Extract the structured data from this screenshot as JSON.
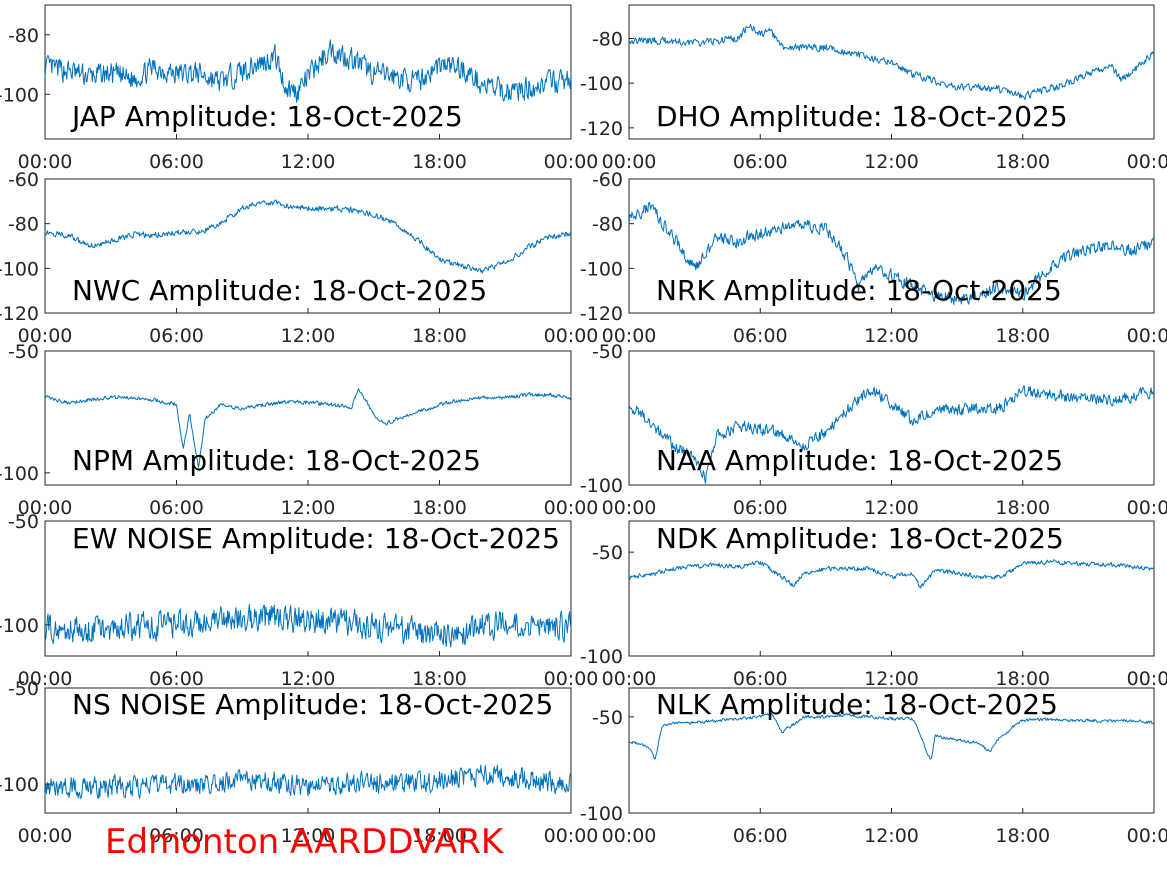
{
  "footer": "Edmonton AARDDVARK",
  "line_color": "#0072BD",
  "chart_data": [
    {
      "type": "line",
      "title": "JAP Amplitude: 18-Oct-2025",
      "xticks": [
        "00:00",
        "06:00",
        "12:00",
        "18:00",
        "00:00"
      ],
      "yticks": [
        "-80",
        "-100"
      ],
      "ylim": [
        -115,
        -70
      ],
      "series": [
        {
          "x": [
            0,
            1,
            2,
            3,
            4,
            5,
            6,
            7,
            8,
            9,
            10,
            10.5,
            11,
            11.5,
            12,
            13,
            14,
            15,
            16,
            17,
            18,
            19,
            20,
            21,
            22,
            23,
            24
          ],
          "y": [
            -91,
            -92,
            -94,
            -93,
            -95,
            -91,
            -93,
            -93,
            -96,
            -92,
            -89,
            -87,
            -98,
            -99,
            -94,
            -85,
            -88,
            -93,
            -94,
            -96,
            -90,
            -91,
            -97,
            -99,
            -98,
            -96,
            -95
          ],
          "noise": 7
        }
      ]
    },
    {
      "type": "line",
      "title": "DHO Amplitude: 18-Oct-2025",
      "xticks": [
        "00:00",
        "06:00",
        "12:00",
        "18:00",
        "00:00"
      ],
      "yticks": [
        "-80",
        "-100",
        "-120"
      ],
      "ylim": [
        -125,
        -65
      ],
      "series": [
        {
          "x": [
            0,
            1,
            2,
            3,
            4,
            5,
            5.5,
            6,
            6.5,
            7,
            8,
            9,
            10,
            11,
            12,
            13,
            14,
            15,
            16,
            17,
            18,
            19,
            20,
            21,
            22,
            22.5,
            23,
            24
          ],
          "y": [
            -81,
            -81,
            -81,
            -82,
            -81,
            -80,
            -74,
            -78,
            -77,
            -84,
            -84,
            -84,
            -86,
            -89,
            -91,
            -96,
            -99,
            -102,
            -102,
            -103,
            -106,
            -103,
            -100,
            -96,
            -92,
            -98,
            -95,
            -86
          ],
          "noise": 3
        }
      ]
    },
    {
      "type": "line",
      "title": "NWC Amplitude: 18-Oct-2025",
      "xticks": [
        "00:00",
        "06:00",
        "12:00",
        "18:00",
        "00:00"
      ],
      "yticks": [
        "-60",
        "-80",
        "-100",
        "-120"
      ],
      "ylim": [
        -120,
        -60
      ],
      "series": [
        {
          "x": [
            0,
            1,
            2,
            3,
            4,
            5,
            6,
            7,
            8,
            9,
            10,
            11,
            12,
            13,
            14,
            15,
            16,
            17,
            18,
            19,
            20,
            21,
            22,
            23,
            24
          ],
          "y": [
            -84,
            -85,
            -90,
            -88,
            -85,
            -85,
            -84,
            -84,
            -80,
            -73,
            -70,
            -72,
            -73,
            -73,
            -74,
            -76,
            -80,
            -87,
            -96,
            -99,
            -101,
            -97,
            -91,
            -86,
            -84
          ],
          "noise": 2.5
        }
      ]
    },
    {
      "type": "line",
      "title": "NRK Amplitude: 18-Oct-2025",
      "xticks": [
        "00:00",
        "06:00",
        "12:00",
        "18:00",
        "00:00"
      ],
      "yticks": [
        "-60",
        "-80",
        "-100",
        "-120"
      ],
      "ylim": [
        -120,
        -60
      ],
      "series": [
        {
          "x": [
            0,
            1,
            2,
            3,
            4,
            5,
            6,
            7,
            8,
            9,
            10,
            10.5,
            11,
            12,
            13,
            14,
            15,
            16,
            17,
            18,
            19,
            20,
            21,
            22,
            23,
            24
          ],
          "y": [
            -78,
            -72,
            -86,
            -100,
            -87,
            -88,
            -84,
            -82,
            -81,
            -82,
            -96,
            -109,
            -100,
            -103,
            -108,
            -112,
            -114,
            -112,
            -108,
            -112,
            -101,
            -95,
            -91,
            -90,
            -92,
            -88
          ],
          "noise": 5
        }
      ]
    },
    {
      "type": "line",
      "title": "NPM Amplitude: 18-Oct-2025",
      "xticks": [
        "00:00",
        "06:00",
        "12:00",
        "18:00",
        "00:00"
      ],
      "yticks": [
        "-50",
        "-100"
      ],
      "ylim": [
        -105,
        -50
      ],
      "series": [
        {
          "x": [
            0,
            1,
            2,
            3,
            4,
            5,
            6,
            6.3,
            6.6,
            7,
            7.3,
            8,
            9,
            10,
            11,
            12,
            13,
            14,
            14.3,
            15,
            15.5,
            16,
            17,
            18,
            19,
            20,
            21,
            22,
            23,
            24
          ],
          "y": [
            -69,
            -71,
            -70,
            -69,
            -69,
            -70,
            -72,
            -90,
            -76,
            -98,
            -78,
            -72,
            -74,
            -72,
            -71,
            -71,
            -72,
            -73,
            -65,
            -76,
            -80,
            -78,
            -75,
            -72,
            -70,
            -69,
            -69,
            -68,
            -68,
            -69
          ],
          "noise": 1.5
        }
      ]
    },
    {
      "type": "line",
      "title": "NAA Amplitude: 18-Oct-2025",
      "xticks": [
        "00:00",
        "06:00",
        "12:00",
        "18:00",
        "00:00"
      ],
      "yticks": [
        "-50",
        "-100"
      ],
      "ylim": [
        -100,
        -50
      ],
      "series": [
        {
          "x": [
            0,
            1,
            2,
            3,
            3.5,
            4,
            5,
            6,
            7,
            8,
            9,
            10,
            11,
            12,
            13,
            14,
            15,
            16,
            17,
            18,
            19,
            20,
            21,
            22,
            23,
            24
          ],
          "y": [
            -70,
            -77,
            -85,
            -90,
            -97,
            -82,
            -78,
            -79,
            -81,
            -86,
            -80,
            -72,
            -64,
            -70,
            -76,
            -72,
            -72,
            -71,
            -71,
            -65,
            -66,
            -67,
            -68,
            -68,
            -67,
            -65
          ],
          "noise": 4
        }
      ]
    },
    {
      "type": "line",
      "title": "EW NOISE Amplitude: 18-Oct-2025",
      "xticks": [
        "00:00",
        "06:00",
        "12:00",
        "18:00",
        "00:00"
      ],
      "yticks": [
        "-50",
        "-100"
      ],
      "ylim": [
        -115,
        -50
      ],
      "series": [
        {
          "x": [
            0,
            2,
            4,
            6,
            8,
            10,
            12,
            14,
            16,
            18,
            20,
            22,
            24
          ],
          "y": [
            -102,
            -103,
            -101,
            -100,
            -98,
            -96,
            -98,
            -99,
            -102,
            -105,
            -101,
            -99,
            -101
          ],
          "noise": 12
        }
      ]
    },
    {
      "type": "line",
      "title": "NDK Amplitude: 18-Oct-2025",
      "xticks": [
        "00:00",
        "06:00",
        "12:00",
        "18:00",
        "00:00"
      ],
      "yticks": [
        "-50",
        "-100"
      ],
      "ylim": [
        -100,
        -35
      ],
      "series": [
        {
          "x": [
            0,
            1,
            2,
            3,
            4,
            5,
            6,
            7,
            7.5,
            8,
            9,
            10,
            11,
            12,
            13,
            13.3,
            14,
            15,
            16,
            17,
            17.5,
            18,
            19,
            20,
            21,
            22,
            23,
            24
          ],
          "y": [
            -62,
            -61,
            -58,
            -57,
            -56,
            -57,
            -55,
            -62,
            -66,
            -60,
            -58,
            -58,
            -58,
            -62,
            -60,
            -67,
            -59,
            -60,
            -62,
            -62,
            -59,
            -55,
            -55,
            -55,
            -56,
            -56,
            -57,
            -58
          ],
          "noise": 2
        }
      ]
    },
    {
      "type": "line",
      "title": "NS NOISE Amplitude: 18-Oct-2025",
      "xticks": [
        "00:00",
        "06:00",
        "12:00",
        "18:00",
        "00:00"
      ],
      "yticks": [
        "-50",
        "-100"
      ],
      "ylim": [
        -115,
        -50
      ],
      "series": [
        {
          "x": [
            0,
            2,
            4,
            6,
            8,
            10,
            12,
            14,
            16,
            18,
            20,
            22,
            24
          ],
          "y": [
            -102,
            -102,
            -101,
            -100,
            -99,
            -98,
            -101,
            -99,
            -100,
            -98,
            -95,
            -97,
            -100
          ],
          "noise": 10
        }
      ]
    },
    {
      "type": "line",
      "title": "NLK Amplitude: 18-Oct-2025",
      "xticks": [
        "00:00",
        "06:00",
        "12:00",
        "18:00",
        "00:00"
      ],
      "yticks": [
        "-50",
        "-100"
      ],
      "ylim": [
        -100,
        -35
      ],
      "series": [
        {
          "x": [
            0,
            0.5,
            1,
            1.2,
            1.5,
            2,
            3,
            4,
            5,
            6,
            6.5,
            7,
            8,
            9,
            10,
            11,
            12,
            13,
            13.8,
            14,
            15,
            16,
            16.5,
            17,
            18,
            19,
            20,
            21,
            22,
            23,
            24
          ],
          "y": [
            -63,
            -64,
            -67,
            -72,
            -55,
            -53,
            -53,
            -52,
            -51,
            -50,
            -48,
            -58,
            -50,
            -50,
            -49,
            -50,
            -51,
            -51,
            -73,
            -60,
            -62,
            -64,
            -68,
            -60,
            -52,
            -51,
            -52,
            -52,
            -52,
            -52,
            -53
          ],
          "noise": 1.5
        }
      ]
    }
  ]
}
